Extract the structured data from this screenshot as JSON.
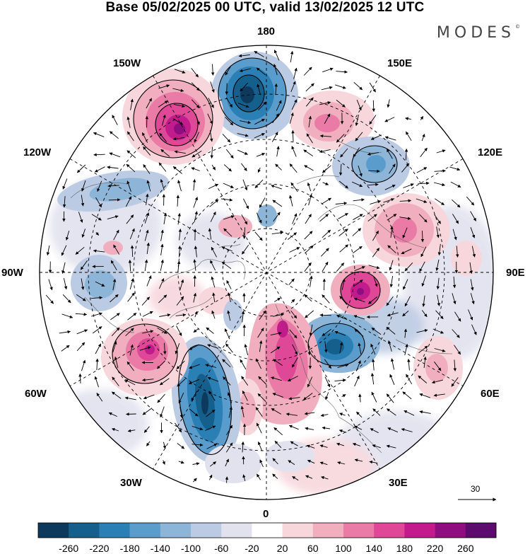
{
  "title": "Base 05/02/2025 00 UTC, valid 13/02/2025 12 UTC",
  "brand": "MODES",
  "brand_mark": "©",
  "longitude_labels": {
    "lon_180": "180",
    "lon_150W": "150W",
    "lon_150E": "150E",
    "lon_120W": "120W",
    "lon_120E": "120E",
    "lon_90W": "90W",
    "lon_90E": "90E",
    "lon_60W": "60W",
    "lon_60E": "60E",
    "lon_30W": "30W",
    "lon_30E": "30E",
    "lon_0": "0"
  },
  "reference_vector": {
    "value": "30"
  },
  "colorbar": {
    "ticks": [
      "-260",
      "-220",
      "-180",
      "-140",
      "-100",
      "-60",
      "-20",
      "20",
      "60",
      "100",
      "140",
      "180",
      "220",
      "260"
    ],
    "colors": [
      "#0d3a5c",
      "#155f8d",
      "#2a7fb5",
      "#5a9ccb",
      "#8cb5d8",
      "#bccbe4",
      "#e2e2ef",
      "#ffffff",
      "#f7d7dc",
      "#f1aebf",
      "#ea7aa6",
      "#df4897",
      "#c21b8c",
      "#8e0e7f",
      "#5c0a6e"
    ]
  },
  "anomaly_features": [
    {
      "name": "neg-180",
      "color": "#155f8d"
    },
    {
      "name": "pos-150W",
      "color": "#c21b8c"
    },
    {
      "name": "pos-150E",
      "color": "#ea7aa6"
    },
    {
      "name": "neg-120E",
      "color": "#5a9ccb"
    },
    {
      "name": "pos-100E",
      "color": "#ea7aa6"
    },
    {
      "name": "pos-90E",
      "color": "#c21b8c"
    },
    {
      "name": "neg-60E",
      "color": "#155f8d"
    },
    {
      "name": "pos-scandinavia",
      "color": "#df4897"
    },
    {
      "name": "neg-40W",
      "color": "#155f8d"
    },
    {
      "name": "pos-70W",
      "color": "#c21b8c"
    },
    {
      "name": "neg-120W",
      "color": "#5a9ccb"
    },
    {
      "name": "pos-60E-far",
      "color": "#f1aebf"
    }
  ]
}
